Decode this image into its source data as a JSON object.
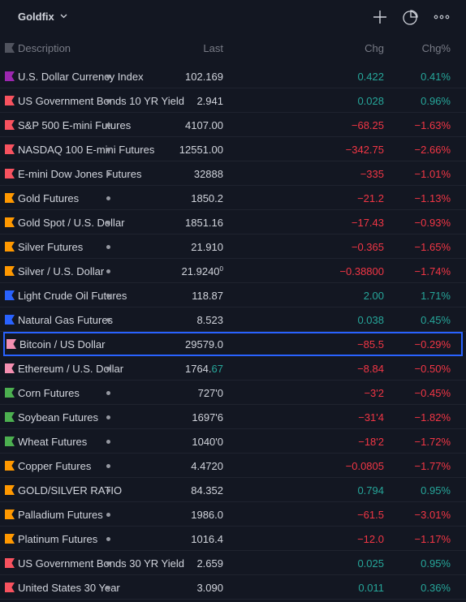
{
  "watchlist": {
    "title": "Goldfix"
  },
  "toolbar": {
    "add_icon": "plus-icon",
    "chart_icon": "pie-chart-icon",
    "more_icon": "more-dots-icon"
  },
  "columns": {
    "description": "Description",
    "last": "Last",
    "chg": "Chg",
    "chgp": "Chg%"
  },
  "colors": {
    "up": "#26a69a",
    "down": "#f23645",
    "selected_border": "#2962ff",
    "background": "#131722"
  },
  "rows": [
    {
      "desc": "U.S. Dollar Currency Index",
      "last": "102.169",
      "chg": "0.422",
      "chgp": "0.41%",
      "dir": "up",
      "flag": "#9c27b0"
    },
    {
      "desc": "US Government Bonds 10 YR Yield",
      "last": "2.941",
      "chg": "0.028",
      "chgp": "0.96%",
      "dir": "up",
      "flag": "#f7525f"
    },
    {
      "desc": "S&P 500 E-mini Futures",
      "last": "4107.00",
      "chg": "−68.25",
      "chgp": "−1.63%",
      "dir": "down",
      "flag": "#f7525f"
    },
    {
      "desc": "NASDAQ 100 E-mini Futures",
      "last": "12551.00",
      "chg": "−342.75",
      "chgp": "−2.66%",
      "dir": "down",
      "flag": "#f7525f"
    },
    {
      "desc": "E-mini Dow Jones Futures",
      "last": "32888",
      "chg": "−335",
      "chgp": "−1.01%",
      "dir": "down",
      "flag": "#f7525f"
    },
    {
      "desc": "Gold Futures",
      "last": "1850.2",
      "chg": "−21.2",
      "chgp": "−1.13%",
      "dir": "down",
      "flag": "#ff9800"
    },
    {
      "desc": "Gold Spot / U.S. Dollar",
      "last": "1851.16",
      "chg": "−17.43",
      "chgp": "−0.93%",
      "dir": "down",
      "flag": "#ff9800"
    },
    {
      "desc": "Silver Futures",
      "last": "21.910",
      "chg": "−0.365",
      "chgp": "−1.65%",
      "dir": "down",
      "flag": "#ff9800"
    },
    {
      "desc": "Silver / U.S. Dollar",
      "last": "21.9240",
      "last_sup": "0",
      "chg": "−0.38800",
      "chgp": "−1.74%",
      "dir": "down",
      "flag": "#ff9800"
    },
    {
      "desc": "Light Crude Oil Futures",
      "last": "118.87",
      "chg": "2.00",
      "chgp": "1.71%",
      "dir": "up",
      "flag": "#2962ff"
    },
    {
      "desc": "Natural Gas Futures",
      "last": "8.523",
      "chg": "0.038",
      "chgp": "0.45%",
      "dir": "up",
      "flag": "#2962ff"
    },
    {
      "desc": "Bitcoin / US Dollar",
      "last": "29579.0",
      "chg": "−85.5",
      "chgp": "−0.29%",
      "dir": "down",
      "flag": "#f48fb1",
      "selected": true
    },
    {
      "desc": "Ethereum / U.S. Dollar",
      "last": "1764.",
      "last_tail": "67",
      "chg": "−8.84",
      "chgp": "−0.50%",
      "dir": "down",
      "flag": "#f48fb1"
    },
    {
      "desc": "Corn Futures",
      "last": "727'0",
      "chg": "−3'2",
      "chgp": "−0.45%",
      "dir": "down",
      "flag": "#4caf50"
    },
    {
      "desc": "Soybean Futures",
      "last": "1697'6",
      "chg": "−31'4",
      "chgp": "−1.82%",
      "dir": "down",
      "flag": "#4caf50"
    },
    {
      "desc": "Wheat Futures",
      "last": "1040'0",
      "chg": "−18'2",
      "chgp": "−1.72%",
      "dir": "down",
      "flag": "#4caf50"
    },
    {
      "desc": "Copper Futures",
      "last": "4.4720",
      "chg": "−0.0805",
      "chgp": "−1.77%",
      "dir": "down",
      "flag": "#ff9800"
    },
    {
      "desc": "GOLD/SILVER RATIO",
      "last": "84.352",
      "chg": "0.794",
      "chgp": "0.95%",
      "dir": "up",
      "flag": "#ff9800"
    },
    {
      "desc": "Palladium Futures",
      "last": "1986.0",
      "chg": "−61.5",
      "chgp": "−3.01%",
      "dir": "down",
      "flag": "#ff9800"
    },
    {
      "desc": "Platinum Futures",
      "last": "1016.4",
      "chg": "−12.0",
      "chgp": "−1.17%",
      "dir": "down",
      "flag": "#ff9800"
    },
    {
      "desc": "US Government Bonds 30 YR Yield",
      "last": "2.659",
      "chg": "0.025",
      "chgp": "0.95%",
      "dir": "up",
      "flag": "#f7525f"
    },
    {
      "desc": "United States 30 Year",
      "last": "3.090",
      "chg": "0.011",
      "chgp": "0.36%",
      "dir": "up",
      "flag": "#f7525f"
    }
  ]
}
